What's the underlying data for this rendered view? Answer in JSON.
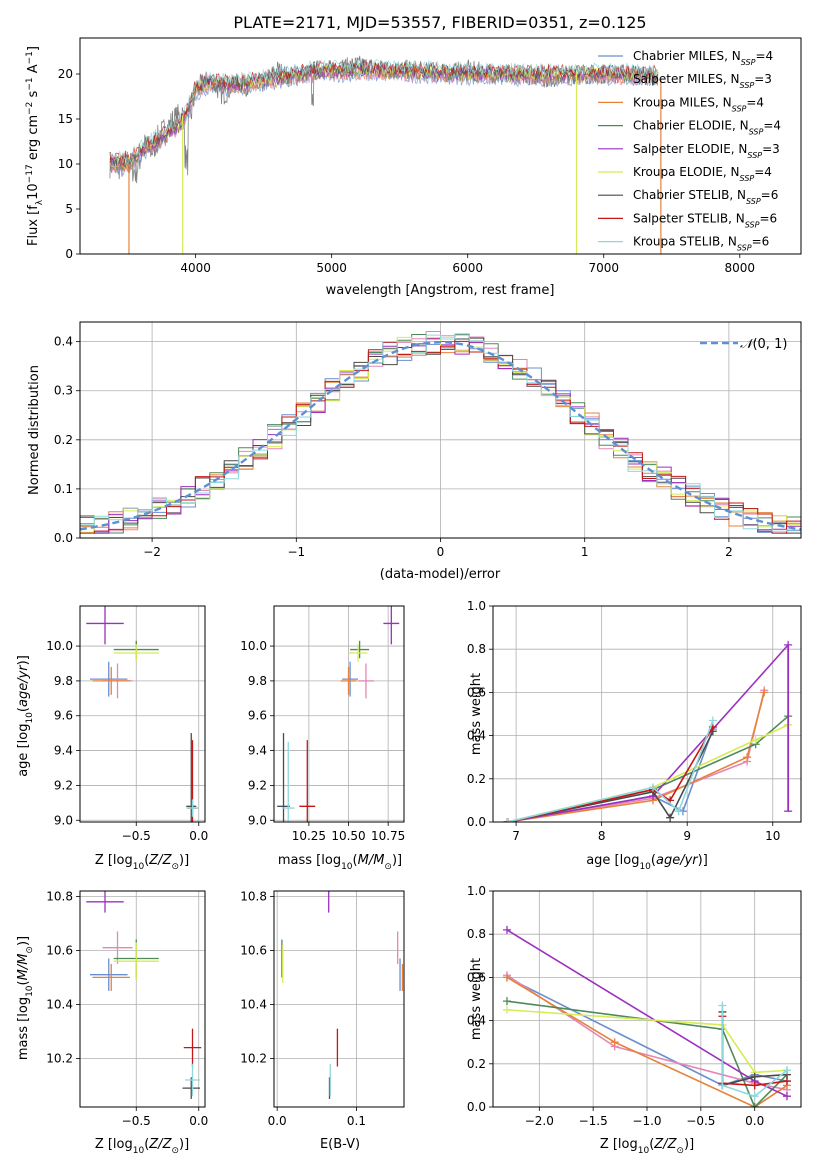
{
  "figure": {
    "title": "PLATE=2171, MJD=53557, FIBERID=0351, z=0.125"
  },
  "series_legend": [
    {
      "label": "Chabrier MILES, N$_{SSP}$=4",
      "text": "Chabrier MILES, N",
      "sub": "SSP",
      "n": "=4",
      "color": "#6a8fd1"
    },
    {
      "label": "Salpeter MILES, N$_{SSP}$=3",
      "text": "Salpeter MILES, N",
      "sub": "SSP",
      "n": "=3",
      "color": "#e387b5"
    },
    {
      "label": "Kroupa MILES, N$_{SSP}$=4",
      "text": "Kroupa MILES, N",
      "sub": "SSP",
      "n": "=4",
      "color": "#e7823a"
    },
    {
      "label": "Chabrier ELODIE, N$_{SSP}$=4",
      "text": "Chabrier ELODIE, N",
      "sub": "SSP",
      "n": "=4",
      "color": "#4e8a59"
    },
    {
      "label": "Salpeter ELODIE, N$_{SSP}$=3",
      "text": "Salpeter ELODIE, N",
      "sub": "SSP",
      "n": "=3",
      "color": "#9b30c0"
    },
    {
      "label": "Kroupa ELODIE, N$_{SSP}$=4",
      "text": "Kroupa ELODIE, N",
      "sub": "SSP",
      "n": "=4",
      "color": "#d6eb55"
    },
    {
      "label": "Chabrier STELIB, N$_{SSP}$=6",
      "text": "Chabrier STELIB, N",
      "sub": "SSP",
      "n": "=6",
      "color": "#4a4a4a"
    },
    {
      "label": "Salpeter STELIB, N$_{SSP}$=6",
      "text": "Salpeter STELIB, N",
      "sub": "SSP",
      "n": "=6",
      "color": "#c41818"
    },
    {
      "label": "Kroupa STELIB, N$_{SSP}$=6",
      "text": "Kroupa STELIB, N",
      "sub": "SSP",
      "n": "=6",
      "color": "#8ed8dd"
    }
  ],
  "chart_data": [
    {
      "id": "spectrum",
      "type": "line",
      "xlabel": "wavelength [Angstrom, rest frame]",
      "ylabel": "Flux [fλ10^-17 erg cm^-2 s^-1 A^-1]",
      "xlim": [
        3150,
        8450
      ],
      "ylim": [
        0,
        24
      ],
      "xticks": [
        4000,
        5000,
        6000,
        7000,
        8000
      ],
      "yticks": [
        0,
        5,
        10,
        15,
        20
      ],
      "data_color": "#808080",
      "data_anchors": {
        "x": [
          3370,
          3450,
          3500,
          3560,
          3620,
          3680,
          3730,
          3780,
          3840,
          3900,
          3950,
          4000,
          4100,
          4200,
          4300,
          4400,
          4500,
          4600,
          4700,
          4800,
          4900,
          5000,
          5200,
          5400,
          5600,
          5800,
          6000,
          6200,
          6400,
          6600,
          6800,
          7000,
          7200,
          7400
        ],
        "y": [
          10.0,
          9.7,
          10.3,
          9.0,
          12.0,
          11.5,
          13.0,
          13.8,
          14.8,
          15.5,
          14.0,
          18.5,
          19.5,
          17.5,
          19.0,
          18.5,
          19.0,
          20.5,
          19.5,
          20.0,
          20.5,
          20.5,
          21.0,
          20.5,
          20.5,
          20.0,
          20.5,
          20.0,
          20.0,
          19.5,
          20.0,
          20.0,
          20.0,
          19.5
        ]
      },
      "model_lines": [
        {
          "name": "Kroupa STELIB",
          "x": [
            3370,
            3500,
            3600,
            3700,
            3800,
            3900,
            4000,
            4100,
            4300,
            4500,
            4700,
            4900,
            5200,
            5500,
            6000,
            6500,
            7000,
            7400
          ],
          "y": [
            10.2,
            10.0,
            11.5,
            12.5,
            13.5,
            14.5,
            18.2,
            19.0,
            18.8,
            19.3,
            19.8,
            20.3,
            20.4,
            20.3,
            20.0,
            19.9,
            20.0,
            19.8
          ]
        }
      ],
      "drops": [
        {
          "x": 3510,
          "color": "#e7823a"
        },
        {
          "x": 3905,
          "color": "#d6eb55"
        },
        {
          "x": 6800,
          "color": "#d6eb55"
        },
        {
          "x": 7420,
          "color": "#e7823a"
        }
      ]
    },
    {
      "id": "residual-histogram",
      "type": "line",
      "xlabel": "(data-model)/error",
      "ylabel": "Normed distribution",
      "xlim": [
        -2.5,
        2.5
      ],
      "ylim": [
        0,
        0.44
      ],
      "xticks": [
        -2,
        -1,
        0,
        1,
        2
      ],
      "yticks": [
        0.0,
        0.1,
        0.2,
        0.3,
        0.4
      ],
      "bins": 50,
      "reference": {
        "label": "$\\mathcal{N}(0,1)$",
        "color": "#5f8fd4"
      }
    },
    {
      "id": "age-vs-Z",
      "type": "scatter",
      "xlabel": "Z [log10(Z/Z⊙)]",
      "ylabel": "age  [log10(age/yr)]",
      "xlim": [
        -0.95,
        0.05
      ],
      "ylim": [
        8.99,
        10.23
      ],
      "xticks": [
        -0.5,
        0.0
      ],
      "yticks": [
        9.0,
        9.2,
        9.4,
        9.6,
        9.8,
        10.0
      ],
      "points": [
        {
          "series": "Salpeter ELODIE",
          "x": -0.75,
          "y": 10.13,
          "xerr": 0.15,
          "yerr": 0.12
        },
        {
          "series": "Chabrier MILES",
          "x": -0.72,
          "y": 9.81,
          "xerr": 0.15,
          "yerr": 0.1
        },
        {
          "series": "Salpeter MILES",
          "x": -0.65,
          "y": 9.8,
          "xerr": 0.12,
          "yerr": 0.1
        },
        {
          "series": "Kroupa MILES",
          "x": -0.7,
          "y": 9.8,
          "xerr": 0.15,
          "yerr": 0.08
        },
        {
          "series": "Chabrier ELODIE",
          "x": -0.5,
          "y": 9.98,
          "xerr": 0.18,
          "yerr": 0.05
        },
        {
          "series": "Kroupa ELODIE",
          "x": -0.5,
          "y": 9.96,
          "xerr": 0.18,
          "yerr": 0.05
        },
        {
          "series": "Chabrier STELIB",
          "x": -0.06,
          "y": 9.08,
          "xerr": 0.04,
          "yerr": 0.42
        },
        {
          "series": "Salpeter STELIB",
          "x": -0.05,
          "y": 9.07,
          "xerr": 0.04,
          "yerr": 0.39
        },
        {
          "series": "Kroupa STELIB",
          "x": -0.05,
          "y": 9.07,
          "xerr": 0.05,
          "yerr": 0.05
        }
      ]
    },
    {
      "id": "age-vs-mass",
      "type": "scatter",
      "xlabel": "mass [log10(M/M⊙)]",
      "ylabel": "",
      "xlim": [
        10.03,
        10.85
      ],
      "ylim": [
        8.99,
        10.23
      ],
      "xticks": [
        10.25,
        10.5,
        10.75
      ],
      "yticks": [
        9.0,
        9.2,
        9.4,
        9.6,
        9.8,
        10.0
      ],
      "points": [
        {
          "series": "Salpeter ELODIE",
          "x": 10.77,
          "y": 10.13,
          "xerr": 0.05,
          "yerr": 0.12
        },
        {
          "series": "Chabrier MILES",
          "x": 10.51,
          "y": 9.81,
          "xerr": 0.05,
          "yerr": 0.1
        },
        {
          "series": "Salpeter MILES",
          "x": 10.61,
          "y": 9.8,
          "xerr": 0.05,
          "yerr": 0.1
        },
        {
          "series": "Kroupa MILES",
          "x": 10.5,
          "y": 9.8,
          "xerr": 0.05,
          "yerr": 0.08
        },
        {
          "series": "Chabrier ELODIE",
          "x": 10.57,
          "y": 9.98,
          "xerr": 0.06,
          "yerr": 0.05
        },
        {
          "series": "Kroupa ELODIE",
          "x": 10.56,
          "y": 9.96,
          "xerr": 0.06,
          "yerr": 0.05
        },
        {
          "series": "Chabrier STELIB",
          "x": 10.09,
          "y": 9.08,
          "xerr": 0.04,
          "yerr": 0.42
        },
        {
          "series": "Salpeter STELIB",
          "x": 10.24,
          "y": 9.08,
          "xerr": 0.05,
          "yerr": 0.38
        },
        {
          "series": "Kroupa STELIB",
          "x": 10.12,
          "y": 9.07,
          "xerr": 0.04,
          "yerr": 0.38
        }
      ]
    },
    {
      "id": "mass-weight-vs-age",
      "type": "line",
      "xlabel": "age  [log10(age/yr)]",
      "ylabel": "mass weight",
      "xlim": [
        6.73,
        10.33
      ],
      "ylim": [
        0.0,
        1.0
      ],
      "xticks": [
        7,
        8,
        9,
        10
      ],
      "yticks": [
        0.0,
        0.2,
        0.4,
        0.6,
        0.8,
        1.0
      ],
      "series": [
        {
          "name": "Chabrier MILES",
          "x": [
            6.9,
            8.6,
            8.95,
            9.3
          ],
          "y": [
            0.0,
            0.12,
            0.05,
            0.43
          ]
        },
        {
          "name": "Salpeter MILES",
          "x": [
            6.9,
            8.6,
            9.7,
            9.9
          ],
          "y": [
            0.0,
            0.11,
            0.28,
            0.61
          ]
        },
        {
          "name": "Kroupa MILES",
          "x": [
            6.9,
            8.6,
            9.7,
            9.9
          ],
          "y": [
            0.0,
            0.1,
            0.3,
            0.6
          ]
        },
        {
          "name": "Chabrier ELODIE",
          "x": [
            6.9,
            8.6,
            9.8,
            10.18
          ],
          "y": [
            0.0,
            0.15,
            0.36,
            0.49
          ]
        },
        {
          "name": "Salpeter ELODIE",
          "x": [
            6.9,
            8.6,
            10.18
          ],
          "y": [
            0.0,
            0.12,
            0.82
          ]
        },
        {
          "name": "Kroupa ELODIE",
          "x": [
            6.9,
            8.6,
            9.8,
            10.18
          ],
          "y": [
            0.0,
            0.16,
            0.38,
            0.45
          ]
        },
        {
          "name": "Chabrier STELIB",
          "x": [
            6.9,
            8.6,
            8.8,
            9.3
          ],
          "y": [
            0.0,
            0.14,
            0.02,
            0.42
          ]
        },
        {
          "name": "Salpeter STELIB",
          "x": [
            6.9,
            8.6,
            8.8,
            9.3
          ],
          "y": [
            0.0,
            0.15,
            0.1,
            0.44
          ]
        },
        {
          "name": "Kroupa STELIB",
          "x": [
            6.9,
            8.6,
            8.9,
            9.3
          ],
          "y": [
            0.0,
            0.16,
            0.05,
            0.47
          ]
        }
      ],
      "vertical_bar": {
        "series": "Salpeter ELODIE",
        "x": 10.18,
        "y": [
          0.05,
          0.82
        ]
      }
    },
    {
      "id": "mass-vs-Z",
      "type": "scatter",
      "xlabel": "Z [log10(Z/Z⊙)]",
      "ylabel": "mass [log10(M/M⊙)]",
      "xlim": [
        -0.95,
        0.05
      ],
      "ylim": [
        10.02,
        10.82
      ],
      "xticks": [
        -0.5,
        0.0
      ],
      "yticks": [
        10.2,
        10.4,
        10.6,
        10.8
      ],
      "points": [
        {
          "series": "Salpeter ELODIE",
          "x": -0.75,
          "y": 10.78,
          "xerr": 0.15,
          "yerr": 0.04
        },
        {
          "series": "Chabrier MILES",
          "x": -0.72,
          "y": 10.51,
          "xerr": 0.15,
          "yerr": 0.06
        },
        {
          "series": "Salpeter MILES",
          "x": -0.65,
          "y": 10.61,
          "xerr": 0.12,
          "yerr": 0.06
        },
        {
          "series": "Kroupa MILES",
          "x": -0.7,
          "y": 10.5,
          "xerr": 0.15,
          "yerr": 0.05
        },
        {
          "series": "Chabrier ELODIE",
          "x": -0.5,
          "y": 10.57,
          "xerr": 0.18,
          "yerr": 0.07
        },
        {
          "series": "Kroupa ELODIE",
          "x": -0.5,
          "y": 10.56,
          "xerr": 0.18,
          "yerr": 0.07
        },
        {
          "series": "Chabrier STELIB",
          "x": -0.06,
          "y": 10.09,
          "xerr": 0.07,
          "yerr": 0.04
        },
        {
          "series": "Salpeter STELIB",
          "x": -0.05,
          "y": 10.24,
          "xerr": 0.07,
          "yerr": 0.07
        },
        {
          "series": "Kroupa STELIB",
          "x": -0.05,
          "y": 10.12,
          "xerr": 0.06,
          "yerr": 0.06
        }
      ]
    },
    {
      "id": "mass-vs-EBV",
      "type": "scatter",
      "xlabel": "E(B-V)",
      "ylabel": "",
      "xlim": [
        -0.004,
        0.16
      ],
      "ylim": [
        10.02,
        10.82
      ],
      "xticks": [
        0.0,
        0.1
      ],
      "yticks": [
        10.2,
        10.4,
        10.6,
        10.8
      ],
      "points": [
        {
          "series": "Salpeter ELODIE",
          "x": 0.065,
          "y": 10.78,
          "xerr": 0.0,
          "yerr": 0.04
        },
        {
          "series": "Chabrier MILES",
          "x": 0.155,
          "y": 10.51,
          "xerr": 0.0,
          "yerr": 0.06
        },
        {
          "series": "Salpeter MILES",
          "x": 0.152,
          "y": 10.61,
          "xerr": 0.0,
          "yerr": 0.06
        },
        {
          "series": "Kroupa MILES",
          "x": 0.158,
          "y": 10.5,
          "xerr": 0.0,
          "yerr": 0.05
        },
        {
          "series": "Chabrier ELODIE",
          "x": 0.006,
          "y": 10.57,
          "xerr": 0.0,
          "yerr": 0.07
        },
        {
          "series": "Kroupa ELODIE",
          "x": 0.007,
          "y": 10.55,
          "xerr": 0.0,
          "yerr": 0.07
        },
        {
          "series": "Chabrier STELIB",
          "x": 0.066,
          "y": 10.09,
          "xerr": 0.0,
          "yerr": 0.04
        },
        {
          "series": "Salpeter STELIB",
          "x": 0.076,
          "y": 10.24,
          "xerr": 0.0,
          "yerr": 0.07
        },
        {
          "series": "Kroupa STELIB",
          "x": 0.067,
          "y": 10.12,
          "xerr": 0.0,
          "yerr": 0.06
        }
      ]
    },
    {
      "id": "mass-weight-vs-Z",
      "type": "line",
      "xlabel": "Z [log10(Z/Z⊙)]",
      "ylabel": "mass weight",
      "xlim": [
        -2.43,
        0.43
      ],
      "ylim": [
        0.0,
        1.0
      ],
      "xticks": [
        -2.0,
        -1.5,
        -1.0,
        -0.5,
        0.0
      ],
      "yticks": [
        0.0,
        0.2,
        0.4,
        0.6,
        0.8,
        1.0
      ],
      "series": [
        {
          "name": "Chabrier MILES",
          "x": [
            -2.3,
            -0.3,
            0.0,
            0.3
          ],
          "y": [
            0.6,
            0.1,
            0.15,
            0.12
          ]
        },
        {
          "name": "Salpeter MILES",
          "x": [
            -2.3,
            -1.3,
            0.0,
            0.3
          ],
          "y": [
            0.61,
            0.28,
            0.11,
            0.08
          ]
        },
        {
          "name": "Kroupa MILES",
          "x": [
            -2.3,
            -1.3,
            0.0,
            0.3
          ],
          "y": [
            0.6,
            0.3,
            0.0,
            0.1
          ]
        },
        {
          "name": "Chabrier ELODIE",
          "x": [
            -2.3,
            -0.3,
            0.0,
            0.3
          ],
          "y": [
            0.49,
            0.36,
            0.0,
            0.15
          ]
        },
        {
          "name": "Salpeter ELODIE",
          "x": [
            -2.3,
            0.0,
            0.3
          ],
          "y": [
            0.82,
            0.12,
            0.05
          ]
        },
        {
          "name": "Kroupa ELODIE",
          "x": [
            -2.3,
            -0.3,
            0.0,
            0.3
          ],
          "y": [
            0.45,
            0.38,
            0.16,
            0.17
          ]
        },
        {
          "name": "Chabrier STELIB",
          "x": [
            -0.3,
            -0.3,
            0.0,
            0.3
          ],
          "y": [
            0.44,
            0.1,
            0.14,
            0.15
          ]
        },
        {
          "name": "Salpeter STELIB",
          "x": [
            -0.3,
            -0.3,
            0.0,
            0.3
          ],
          "y": [
            0.42,
            0.11,
            0.1,
            0.12
          ]
        },
        {
          "name": "Kroupa STELIB",
          "x": [
            -0.3,
            -0.3,
            0.0,
            0.3
          ],
          "y": [
            0.47,
            0.1,
            0.05,
            0.17
          ]
        }
      ]
    }
  ]
}
